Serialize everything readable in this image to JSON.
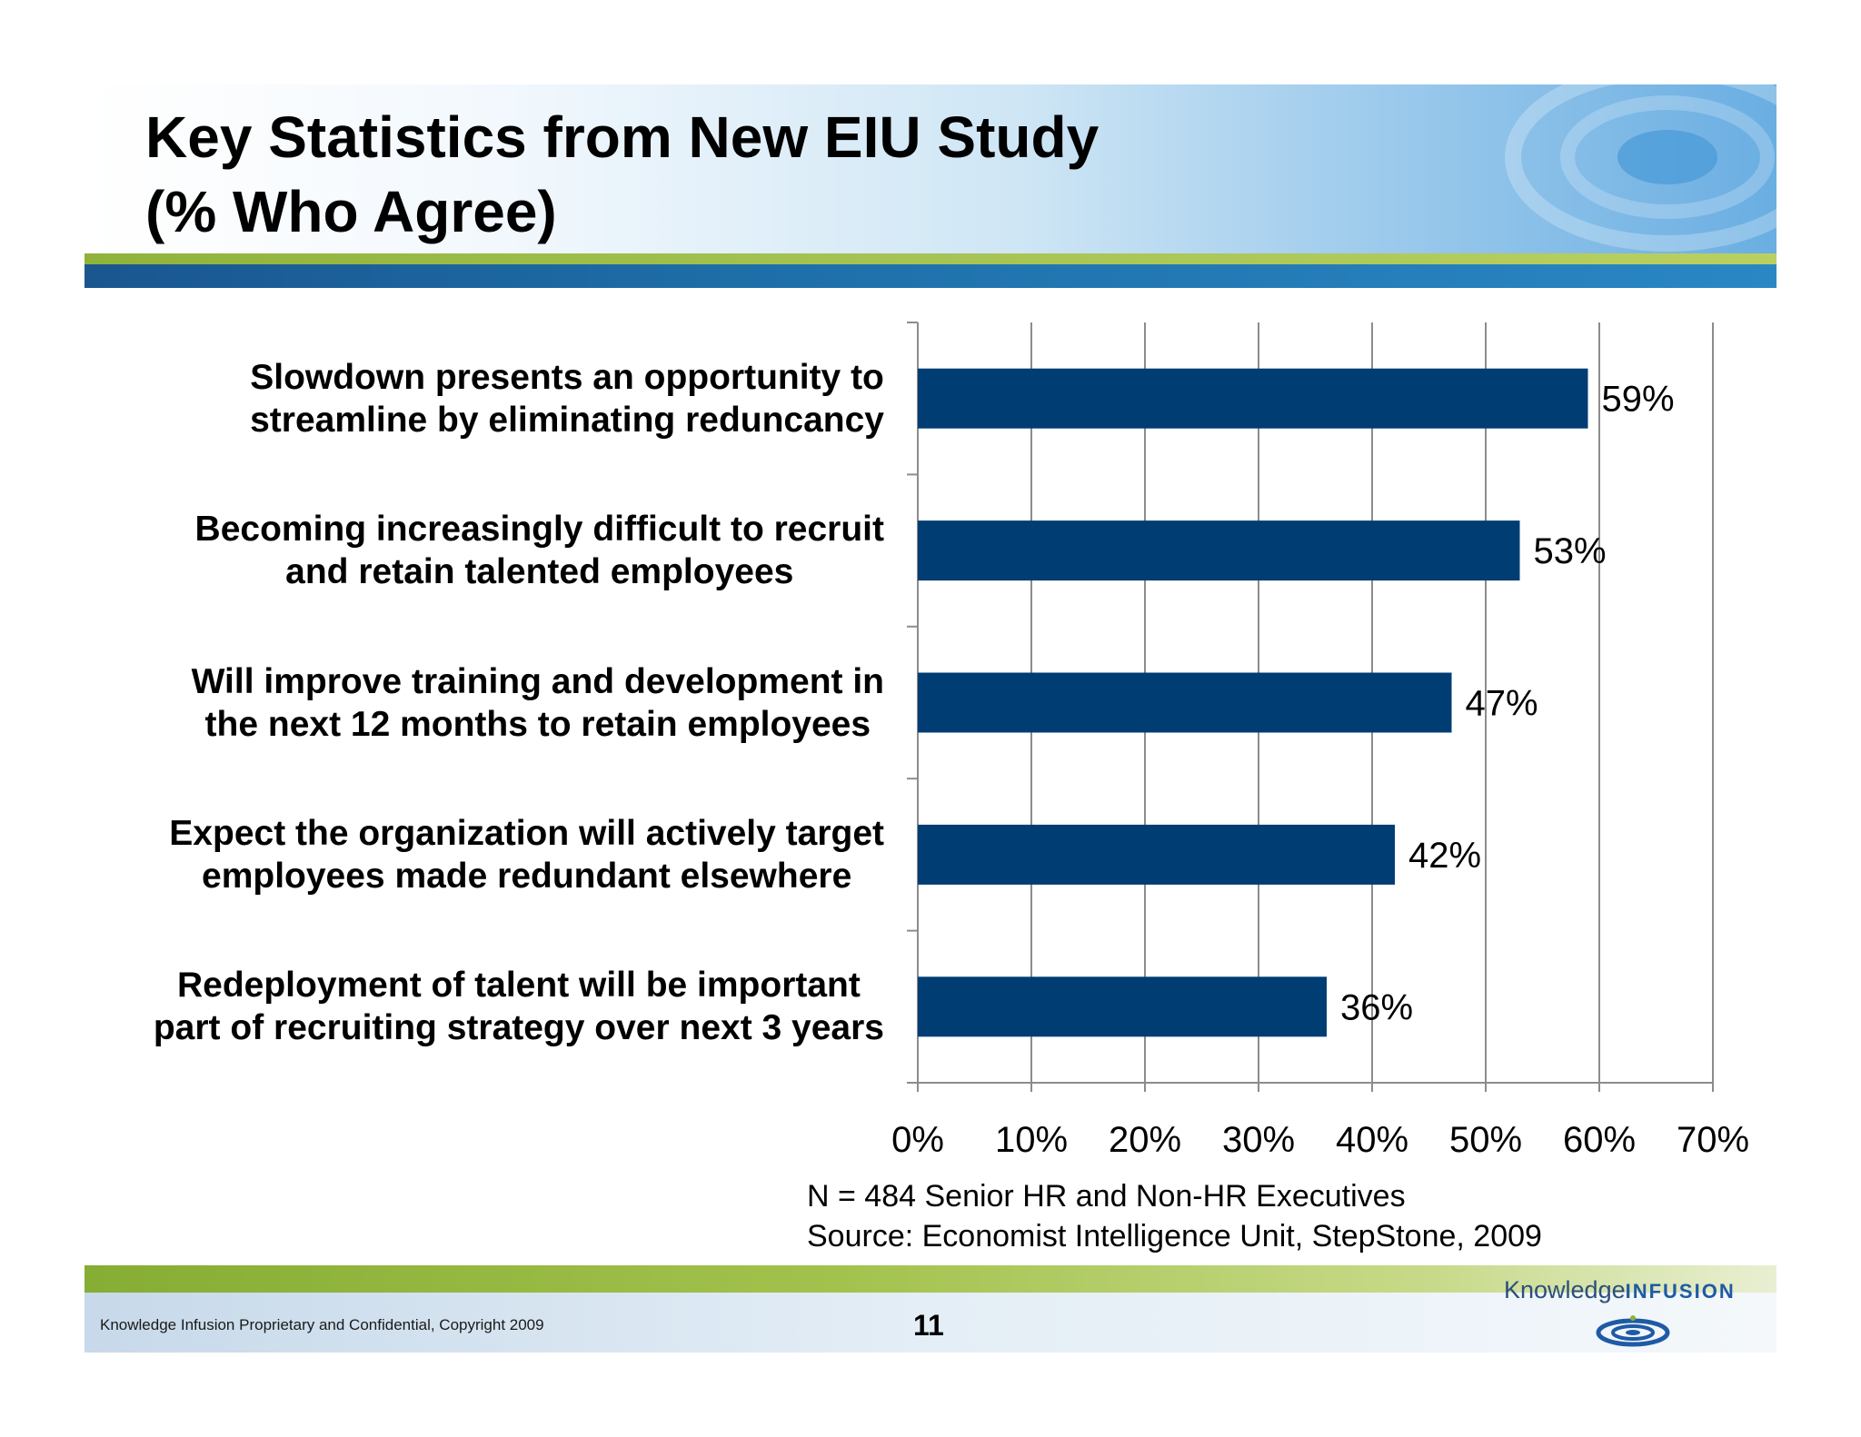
{
  "header": {
    "title": "Key Statistics from New EIU Study\n(% Who Agree)"
  },
  "chart_data": {
    "type": "bar",
    "orientation": "horizontal",
    "categories": [
      "Slowdown presents an opportunity to\nstreamline by eliminating reduncancy",
      "Becoming increasingly difficult to recruit\nand retain talented employees",
      "Will improve training and development in\nthe next 12 months to retain employees",
      "Expect the organization will actively target\nemployees made redundant elsewhere",
      "Redeployment of talent will be important\npart of recruiting strategy over next 3 years"
    ],
    "values": [
      59,
      53,
      47,
      42,
      36
    ],
    "data_labels": [
      "59%",
      "53%",
      "47%",
      "42%",
      "36%"
    ],
    "xlim": [
      0,
      70
    ],
    "x_ticks": [
      0,
      10,
      20,
      30,
      40,
      50,
      60,
      70
    ],
    "x_tick_labels": [
      "0%",
      "10%",
      "20%",
      "30%",
      "40%",
      "50%",
      "60%",
      "70%"
    ],
    "grid": true,
    "legend": "none",
    "bar_color": "#003d73"
  },
  "source_note": "N = 484 Senior HR and Non-HR Executives\nSource: Economist Intelligence Unit, StepStone, 2009",
  "footer": {
    "confidentiality": "Knowledge Infusion Proprietary and Confidential, Copyright 2009",
    "page_number": "11"
  },
  "logo": {
    "word1": "Knowledge",
    "word2": "INFUSION"
  }
}
